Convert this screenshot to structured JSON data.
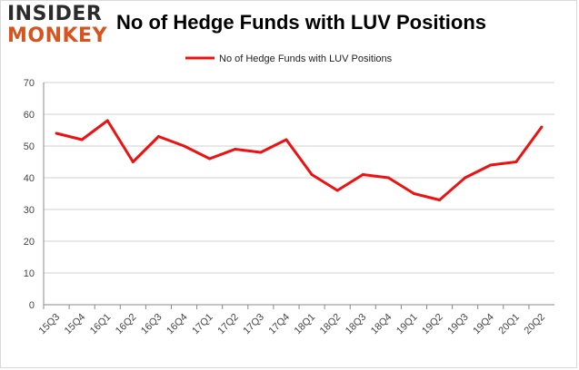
{
  "logo": {
    "line1": "INSIDER",
    "line2": "MONKEY"
  },
  "title": "No of Hedge Funds with LUV Positions",
  "colors": {
    "series": "#ee1111",
    "grid": "#d0d0d0",
    "axis": "#888888",
    "logo_accent": "#d9531e"
  },
  "chart_data": {
    "type": "line",
    "title": "No of Hedge Funds with LUV Positions",
    "xlabel": "",
    "ylabel": "",
    "x": [
      "15Q3",
      "15Q4",
      "16Q1",
      "16Q2",
      "16Q3",
      "16Q4",
      "17Q1",
      "17Q2",
      "17Q3",
      "17Q4",
      "18Q1",
      "18Q2",
      "18Q3",
      "18Q4",
      "19Q1",
      "19Q2",
      "19Q3",
      "19Q4",
      "20Q1",
      "20Q2"
    ],
    "series": [
      {
        "name": "No of Hedge Funds with LUV Positions",
        "values": [
          54,
          52,
          58,
          45,
          53,
          50,
          46,
          49,
          48,
          52,
          41,
          36,
          41,
          40,
          35,
          33,
          40,
          44,
          45,
          56
        ]
      }
    ],
    "ylim": [
      0,
      70
    ],
    "yticks": [
      0,
      10,
      20,
      30,
      40,
      50,
      60,
      70
    ],
    "grid": true,
    "legend": "top-center"
  }
}
